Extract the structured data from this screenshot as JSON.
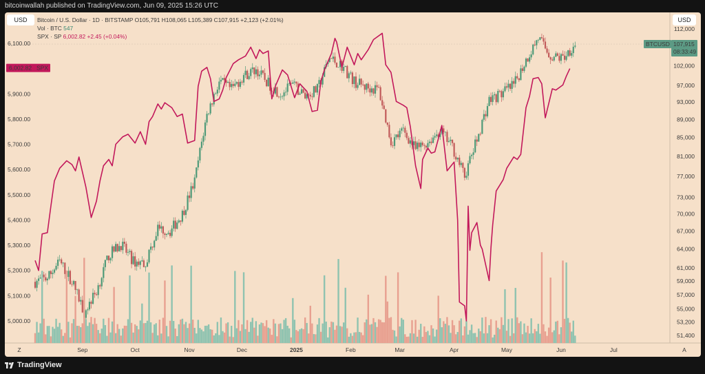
{
  "header": {
    "publisher": "bitcoinwallah published on TradingView.com, Jun 09, 2025 15:26 UTC"
  },
  "currency_left": "USD",
  "currency_right": "USD",
  "legend": {
    "symbol": "Bitcoin / U.S. Dollar · 1D · BITSTAMP",
    "ohlc": "O105,791 H108,065 L105,389 C107,915 +2,123 (+2.01%)",
    "vol_label": "Vol · BTC",
    "vol_value": "547",
    "spx_label": "SPX · SP",
    "spx_value": "6,002.82",
    "spx_change": "+2.45 (+0.04%)"
  },
  "badges": {
    "spx_value": "6,002.82",
    "spx_label": "SPX",
    "btc_label": "BTCUSD",
    "btc_price": "107,915",
    "btc_time": "08:33:49"
  },
  "footer": {
    "logo_text": "TradingView",
    "left_button": "Z",
    "right_button": "A"
  },
  "colors": {
    "background": "#f6e0c9",
    "spx_line": "#c2185b",
    "candle_up": "#4e9a78",
    "candle_down": "#c15a5a",
    "vol_up": "#8fc3b0",
    "vol_down": "#e8a090",
    "badge_btc": "#5c9a84",
    "badge_spx": "#c2185b"
  },
  "chart_data": {
    "type": "line",
    "title": "Bitcoin / U.S. Dollar · 1D · BITSTAMP",
    "x_ticks": [
      "Sep",
      "Oct",
      "Nov",
      "Dec",
      "2025",
      "Feb",
      "Mar",
      "Apr",
      "May",
      "Jun",
      "Jul"
    ],
    "left_axis": {
      "ticks": [
        "6,100.00",
        "6,000.00",
        "5,900.00",
        "5,800.00",
        "5,700.00",
        "5,600.00",
        "5,500.00",
        "5,400.00",
        "5,300.00",
        "5,200.00",
        "5,100.00",
        "5,000.00"
      ],
      "ylim": [
        4930,
        6160
      ]
    },
    "right_axis": {
      "ticks": [
        "112,000",
        "102,000",
        "97,000",
        "93,000",
        "89,000",
        "85,000",
        "81,000",
        "77,000",
        "73,000",
        "70,000",
        "67,000",
        "64,000",
        "61,000",
        "59,000",
        "57,000",
        "55,000",
        "53,200",
        "51,400"
      ],
      "ylim": [
        49500,
        114000
      ]
    },
    "series": [
      {
        "name": "SPX · SP",
        "x": [
          "2024-08-05",
          "2024-08-07",
          "2024-08-09",
          "2024-08-12",
          "2024-08-14",
          "2024-08-16",
          "2024-08-19",
          "2024-08-21",
          "2024-08-23",
          "2024-08-26",
          "2024-08-28",
          "2024-08-30",
          "2024-09-03",
          "2024-09-06",
          "2024-09-09",
          "2024-09-11",
          "2024-09-13",
          "2024-09-16",
          "2024-09-18",
          "2024-09-20",
          "2024-09-24",
          "2024-09-27",
          "2024-10-01",
          "2024-10-04",
          "2024-10-07",
          "2024-10-09",
          "2024-10-11",
          "2024-10-14",
          "2024-10-16",
          "2024-10-18",
          "2024-10-22",
          "2024-10-25",
          "2024-10-28",
          "2024-10-31",
          "2024-11-04",
          "2024-11-06",
          "2024-11-08",
          "2024-11-11",
          "2024-11-13",
          "2024-11-15",
          "2024-11-18",
          "2024-11-20",
          "2024-11-22",
          "2024-11-26",
          "2024-11-29",
          "2024-12-03",
          "2024-12-06",
          "2024-12-09",
          "2024-12-11",
          "2024-12-13",
          "2024-12-16",
          "2024-12-18",
          "2024-12-20",
          "2024-12-24",
          "2024-12-27",
          "2024-12-31",
          "2025-01-03",
          "2025-01-07",
          "2025-01-10",
          "2025-01-13",
          "2025-01-15",
          "2025-01-17",
          "2025-01-21",
          "2025-01-23",
          "2025-01-24",
          "2025-01-27",
          "2025-01-30",
          "2025-02-03",
          "2025-02-05",
          "2025-02-07",
          "2025-02-11",
          "2025-02-14",
          "2025-02-19",
          "2025-02-21",
          "2025-02-24",
          "2025-02-27",
          "2025-03-03",
          "2025-03-05",
          "2025-03-07",
          "2025-03-10",
          "2025-03-13",
          "2025-03-14",
          "2025-03-17",
          "2025-03-19",
          "2025-03-21",
          "2025-03-25",
          "2025-03-28",
          "2025-04-01",
          "2025-04-03",
          "2025-04-04",
          "2025-04-07",
          "2025-04-08",
          "2025-04-09",
          "2025-04-10",
          "2025-04-11",
          "2025-04-14",
          "2025-04-16",
          "2025-04-17",
          "2025-04-21",
          "2025-04-22",
          "2025-04-23",
          "2025-04-25",
          "2025-04-29",
          "2025-05-01",
          "2025-05-05",
          "2025-05-07",
          "2025-05-09",
          "2025-05-12",
          "2025-05-14",
          "2025-05-16",
          "2025-05-19",
          "2025-05-21",
          "2025-05-23",
          "2025-05-27",
          "2025-05-29",
          "2025-06-02",
          "2025-06-04",
          "2025-06-06"
        ],
        "values": [
          5240,
          5200,
          5345,
          5350,
          5455,
          5555,
          5605,
          5620,
          5635,
          5620,
          5595,
          5650,
          5530,
          5410,
          5475,
          5555,
          5615,
          5640,
          5615,
          5700,
          5730,
          5740,
          5705,
          5750,
          5700,
          5790,
          5810,
          5860,
          5840,
          5865,
          5845,
          5810,
          5820,
          5705,
          5715,
          5930,
          5990,
          6005,
          5960,
          5870,
          5880,
          5915,
          5965,
          6020,
          6035,
          6050,
          6085,
          6040,
          6075,
          6060,
          6070,
          5880,
          5930,
          5995,
          5975,
          5885,
          5940,
          5910,
          5830,
          5835,
          5950,
          5995,
          6060,
          6120,
          6105,
          6005,
          6085,
          6015,
          6060,
          6035,
          6075,
          6115,
          6140,
          6015,
          5985,
          5870,
          5855,
          5845,
          5770,
          5615,
          5525,
          5640,
          5685,
          5665,
          5670,
          5775,
          5595,
          5630,
          5400,
          5075,
          5060,
          5000,
          5455,
          5280,
          5350,
          5390,
          5300,
          5285,
          5160,
          5290,
          5380,
          5515,
          5560,
          5605,
          5650,
          5640,
          5660,
          5845,
          5890,
          5960,
          5965,
          5940,
          5805,
          5920,
          5915,
          5935,
          5970,
          6000
        ]
      },
      {
        "name": "BTCUSD",
        "x": [
          "2024-08-05",
          "2024-08-12",
          "2024-08-19",
          "2024-08-26",
          "2024-09-02",
          "2024-09-09",
          "2024-09-16",
          "2024-09-23",
          "2024-09-30",
          "2024-10-07",
          "2024-10-14",
          "2024-10-21",
          "2024-10-28",
          "2024-11-04",
          "2024-11-11",
          "2024-11-18",
          "2024-11-25",
          "2024-12-02",
          "2024-12-09",
          "2024-12-16",
          "2024-12-23",
          "2024-12-30",
          "2025-01-06",
          "2025-01-13",
          "2025-01-20",
          "2025-01-27",
          "2025-02-03",
          "2025-02-10",
          "2025-02-17",
          "2025-02-24",
          "2025-03-03",
          "2025-03-10",
          "2025-03-17",
          "2025-03-24",
          "2025-03-31",
          "2025-04-07",
          "2025-04-14",
          "2025-04-21",
          "2025-04-28",
          "2025-05-05",
          "2025-05-12",
          "2025-05-19",
          "2025-05-26",
          "2025-06-02",
          "2025-06-09"
        ],
        "values": [
          58900,
          59500,
          62000,
          59000,
          54500,
          57500,
          63000,
          64800,
          62000,
          61800,
          67500,
          67000,
          70000,
          76000,
          90000,
          98000,
          96000,
          99500,
          101000,
          97500,
          95000,
          97000,
          94500,
          96000,
          104000,
          102000,
          98000,
          96500,
          96000,
          84000,
          86500,
          82500,
          84000,
          86500,
          83000,
          77000,
          84500,
          93500,
          95000,
          97000,
          103500,
          109500,
          104500,
          104000,
          107915
        ]
      }
    ],
    "grid": false,
    "legend_position": "top-left"
  }
}
